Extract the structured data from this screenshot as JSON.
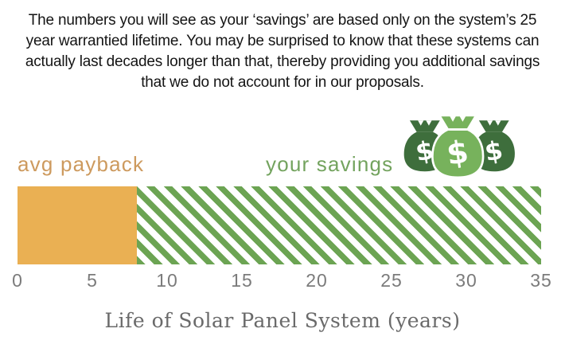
{
  "intro": {
    "text": "The numbers you will see as your ‘savings’ are based only on the system’s 25\nyear warrantied lifetime. You may be surprised to know that these systems can\nactually last decades longer than that, thereby providing you additional savings\nthat we do not account for in our proposals."
  },
  "legend": {
    "payback": "avg payback",
    "savings": "your savings"
  },
  "glyphs": {
    "dollar": "$"
  },
  "icons": {
    "money_bags": {
      "name": "money-bags-icon",
      "bag_dark_color": "#3E6E3C",
      "bag_light_color": "#77B25C",
      "dollar_color": "#FFFFFF"
    }
  },
  "chart_data": {
    "type": "bar",
    "orientation": "horizontal",
    "title": "",
    "xlabel": "Life of Solar Panel System (years)",
    "xlim": [
      0,
      35
    ],
    "xticks": [
      "0",
      "5",
      "10",
      "15",
      "20",
      "25",
      "30",
      "35"
    ],
    "grid": false,
    "legend_position": "above-bar",
    "segments": [
      {
        "name": "avg payback",
        "start": 0,
        "end": 8,
        "color": "#EAB053",
        "pattern": "solid"
      },
      {
        "name": "your savings",
        "start": 8,
        "end": 35,
        "color": "#6CA453",
        "pattern": "diagonal-stripes",
        "stripe_background": "#FFFFFF"
      }
    ]
  }
}
